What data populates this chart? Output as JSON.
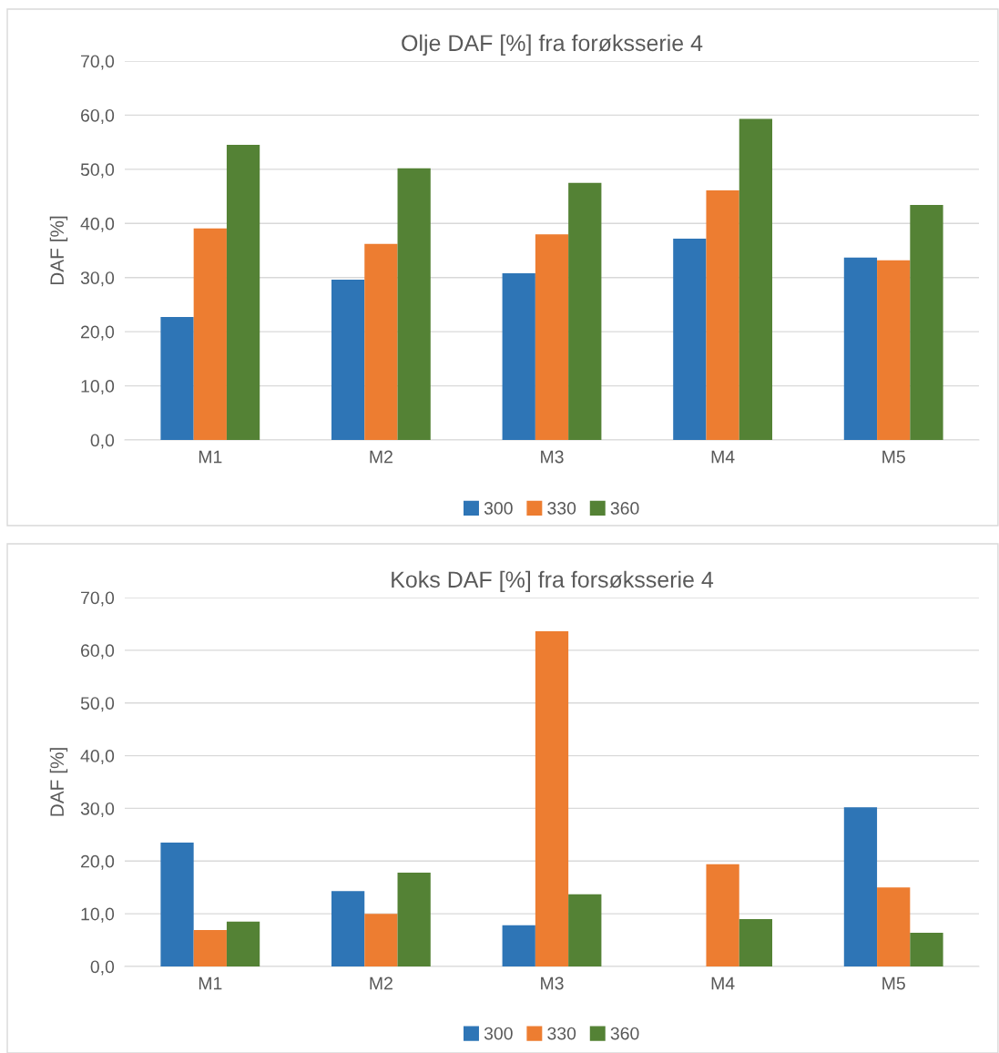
{
  "chart_data": [
    {
      "type": "bar",
      "title": "Olje DAF [%] fra forøksserie 4",
      "ylabel": "DAF [%]",
      "categories": [
        "M1",
        "M2",
        "M3",
        "M4",
        "M5"
      ],
      "series": [
        {
          "name": "300",
          "color": "#2e75b6",
          "values": [
            22.7,
            29.6,
            30.8,
            37.2,
            33.7
          ]
        },
        {
          "name": "330",
          "color": "#ed7d31",
          "values": [
            39.1,
            36.2,
            38.0,
            46.1,
            33.2
          ]
        },
        {
          "name": "360",
          "color": "#548235",
          "values": [
            54.5,
            50.2,
            47.5,
            59.3,
            43.4
          ]
        }
      ],
      "ylim": [
        0,
        70
      ],
      "yticks": [
        {
          "value": 0,
          "label": "0,0"
        },
        {
          "value": 10,
          "label": "10,0"
        },
        {
          "value": 20,
          "label": "20,0"
        },
        {
          "value": 30,
          "label": "30,0"
        },
        {
          "value": 40,
          "label": "40,0"
        },
        {
          "value": 50,
          "label": "50,0"
        },
        {
          "value": 60,
          "label": "60,0"
        },
        {
          "value": 70,
          "label": "70,0"
        }
      ],
      "grid": "y",
      "legend": "bottom"
    },
    {
      "type": "bar",
      "title": "Koks DAF [%] fra forsøksserie 4",
      "ylabel": "DAF [%]",
      "categories": [
        "M1",
        "M2",
        "M3",
        "M4",
        "M5"
      ],
      "series": [
        {
          "name": "300",
          "color": "#2e75b6",
          "values": [
            23.5,
            14.3,
            7.8,
            null,
            30.2
          ]
        },
        {
          "name": "330",
          "color": "#ed7d31",
          "values": [
            6.9,
            10.0,
            63.6,
            19.4,
            15.0
          ]
        },
        {
          "name": "360",
          "color": "#548235",
          "values": [
            8.5,
            17.8,
            13.7,
            9.0,
            6.4
          ]
        }
      ],
      "ylim": [
        0,
        70
      ],
      "yticks": [
        {
          "value": 0,
          "label": "0,0"
        },
        {
          "value": 10,
          "label": "10,0"
        },
        {
          "value": 20,
          "label": "20,0"
        },
        {
          "value": 30,
          "label": "30,0"
        },
        {
          "value": 40,
          "label": "40,0"
        },
        {
          "value": 50,
          "label": "50,0"
        },
        {
          "value": 60,
          "label": "60,0"
        },
        {
          "value": 70,
          "label": "70,0"
        }
      ],
      "grid": "y",
      "legend": "bottom"
    }
  ]
}
